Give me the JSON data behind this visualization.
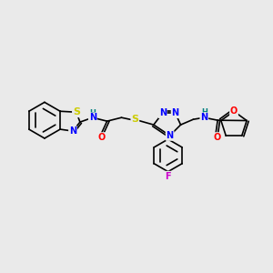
{
  "background_color": "#eaeaea",
  "atom_colors": {
    "N": "#0000ff",
    "O": "#ff0000",
    "S": "#cccc00",
    "F": "#cc00cc",
    "C": "#000000",
    "H": "#008080"
  },
  "bond_color": "#000000",
  "figsize": [
    3.0,
    3.0
  ],
  "dpi": 100
}
